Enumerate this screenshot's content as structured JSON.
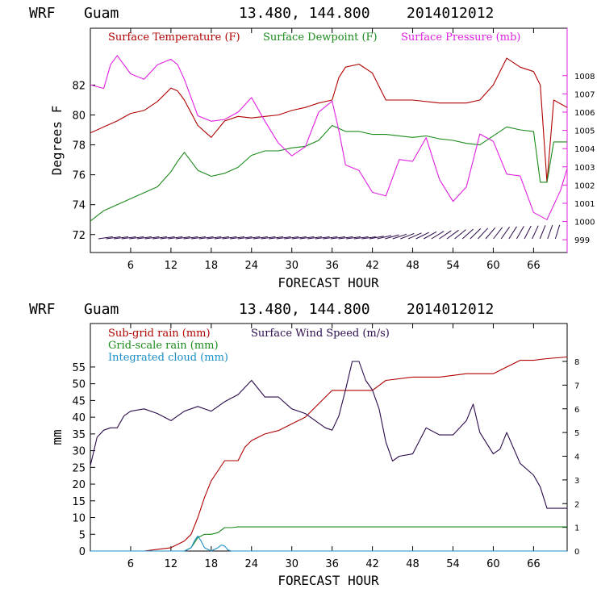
{
  "page": {
    "top_title": {
      "model": "WRF",
      "location": "Guam",
      "coords": "13.480, 144.800",
      "init": "2014012012"
    },
    "bottom_title": {
      "model": "WRF",
      "location": "Guam",
      "coords": "13.480, 144.800",
      "init": "2014012012"
    }
  },
  "colors": {
    "temperature": "#b00000",
    "dewpoint": "#1a8a1a",
    "pressure": "#e020e0",
    "subgrid_rain": "#b00000",
    "gridscale_rain": "#1a8a1a",
    "cloud": "#1a8fc8",
    "wind": "#2a0a4a",
    "axis": "#000000",
    "right_axis_top": "#e020e0"
  },
  "chart_data": [
    {
      "type": "line",
      "xlabel": "FORECAST HOUR",
      "ylabel": "Degrees F",
      "xlim": [
        0,
        71
      ],
      "ylim": [
        70.8,
        85.8
      ],
      "y2lim": [
        998.3,
        1010.6
      ],
      "xticks": [
        6,
        12,
        18,
        24,
        30,
        36,
        42,
        48,
        54,
        60,
        66
      ],
      "yticks": [
        72,
        74,
        76,
        78,
        80,
        82
      ],
      "y2ticks": [
        999,
        1000,
        1001,
        1002,
        1003,
        1004,
        1005,
        1006,
        1007,
        1008
      ],
      "legend": [
        "Surface Temperature (F)",
        "Surface Dewpoint (F)",
        "Surface Pressure (mb)"
      ],
      "legend_placement": "top",
      "series": [
        {
          "name": "Surface Temperature (F)",
          "axis": "left",
          "x": [
            0,
            2,
            4,
            6,
            8,
            10,
            12,
            13,
            14,
            16,
            18,
            20,
            22,
            24,
            26,
            28,
            30,
            32,
            34,
            36,
            37,
            38,
            40,
            42,
            44,
            48,
            52,
            56,
            58,
            60,
            62,
            64,
            66,
            67,
            68,
            69,
            71
          ],
          "values": [
            78.8,
            79.2,
            79.6,
            80.1,
            80.3,
            80.9,
            81.8,
            81.6,
            81.0,
            79.3,
            78.5,
            79.6,
            79.9,
            79.8,
            79.9,
            80.0,
            80.3,
            80.5,
            80.8,
            81.0,
            82.5,
            83.2,
            83.4,
            82.8,
            81.0,
            81.0,
            80.8,
            80.8,
            81.0,
            82.0,
            83.8,
            83.2,
            82.9,
            82.0,
            75.5,
            81.0,
            80.5
          ]
        },
        {
          "name": "Surface Dewpoint (F)",
          "axis": "left",
          "x": [
            0,
            2,
            4,
            6,
            8,
            10,
            12,
            13,
            14,
            16,
            18,
            20,
            22,
            24,
            26,
            28,
            30,
            32,
            34,
            36,
            38,
            40,
            42,
            44,
            46,
            48,
            50,
            52,
            54,
            56,
            58,
            60,
            62,
            64,
            66,
            67,
            68,
            69,
            71
          ],
          "values": [
            72.9,
            73.6,
            74.0,
            74.4,
            74.8,
            75.2,
            76.2,
            76.9,
            77.5,
            76.3,
            75.9,
            76.1,
            76.5,
            77.3,
            77.6,
            77.6,
            77.8,
            77.9,
            78.3,
            79.3,
            78.9,
            78.9,
            78.7,
            78.7,
            78.6,
            78.5,
            78.6,
            78.4,
            78.3,
            78.1,
            78.0,
            78.6,
            79.2,
            79.0,
            78.9,
            75.5,
            75.5,
            78.2,
            78.2
          ]
        },
        {
          "name": "Surface Pressure (mb)",
          "axis": "right",
          "x": [
            0,
            2,
            3,
            4,
            6,
            8,
            10,
            12,
            13,
            14,
            16,
            18,
            20,
            22,
            24,
            26,
            28,
            30,
            32,
            34,
            35,
            36,
            37,
            38,
            40,
            42,
            44,
            46,
            48,
            50,
            52,
            54,
            56,
            58,
            60,
            62,
            64,
            66,
            68,
            70,
            71
          ],
          "values": [
            1007.5,
            1007.3,
            1008.6,
            1009.1,
            1008.1,
            1007.8,
            1008.6,
            1008.9,
            1008.6,
            1007.8,
            1005.8,
            1005.5,
            1005.6,
            1006.0,
            1006.8,
            1005.5,
            1004.3,
            1003.6,
            1004.1,
            1006.0,
            1006.3,
            1006.6,
            1005.0,
            1003.1,
            1002.8,
            1001.6,
            1001.4,
            1003.4,
            1003.3,
            1004.6,
            1002.3,
            1001.1,
            1001.9,
            1004.8,
            1004.4,
            1002.6,
            1002.5,
            1000.5,
            1000.1,
            1001.7,
            1002.9
          ]
        }
      ]
    },
    {
      "type": "line",
      "xlabel": "FORECAST HOUR",
      "ylabel": "mm",
      "xlim": [
        0,
        71
      ],
      "ylim": [
        0,
        68
      ],
      "y2lim": [
        0,
        9.6
      ],
      "xticks": [
        6,
        12,
        18,
        24,
        30,
        36,
        42,
        48,
        54,
        60,
        66
      ],
      "yticks": [
        0,
        5,
        10,
        15,
        20,
        25,
        30,
        35,
        40,
        45,
        50,
        55
      ],
      "y2ticks": [
        0,
        1,
        2,
        3,
        4,
        5,
        6,
        7,
        8
      ],
      "legend": [
        "Sub-grid rain (mm)",
        "Surface Wind Speed (m/s)",
        "Grid-scale rain (mm)",
        "Integrated cloud (mm)"
      ],
      "legend_placement": "top-left",
      "series": [
        {
          "name": "Sub-grid rain (mm)",
          "axis": "left",
          "x": [
            0,
            8,
            10,
            12,
            14,
            15,
            16,
            17,
            18,
            19,
            20,
            21,
            22,
            23,
            24,
            26,
            28,
            30,
            32,
            34,
            36,
            38,
            40,
            42,
            44,
            48,
            52,
            56,
            60,
            62,
            64,
            66,
            68,
            71
          ],
          "values": [
            0,
            0,
            0.5,
            1,
            3,
            5,
            10,
            16,
            21,
            24,
            27,
            27,
            27,
            31,
            33,
            35,
            36,
            38,
            40,
            44,
            48,
            48,
            48,
            48,
            51,
            52,
            52,
            53,
            53,
            55,
            57,
            57,
            57.5,
            58
          ]
        },
        {
          "name": "Grid-scale rain (mm)",
          "axis": "left",
          "x": [
            0,
            14,
            15,
            16,
            17,
            18,
            19,
            20,
            21,
            22,
            30,
            40,
            50,
            60,
            71
          ],
          "values": [
            0,
            0,
            1,
            4,
            5,
            5,
            5.5,
            7,
            7,
            7.2,
            7.2,
            7.2,
            7.2,
            7.2,
            7.2
          ]
        },
        {
          "name": "Integrated cloud (mm)",
          "axis": "left",
          "x": [
            0,
            14,
            15,
            15.5,
            16,
            16.5,
            17,
            18,
            19,
            19.5,
            20,
            20.5,
            21,
            22,
            30,
            40,
            50,
            60,
            71
          ],
          "values": [
            0,
            0,
            1,
            3,
            4.5,
            3,
            1,
            0,
            1,
            1.8,
            1.5,
            0.3,
            0,
            0,
            0,
            0,
            0,
            0,
            0
          ]
        },
        {
          "name": "Surface Wind Speed (m/s)",
          "axis": "right",
          "x": [
            0,
            1,
            2,
            3,
            4,
            5,
            6,
            8,
            10,
            12,
            14,
            16,
            18,
            20,
            22,
            24,
            26,
            28,
            30,
            32,
            34,
            35,
            36,
            37,
            38,
            39,
            40,
            41,
            42,
            43,
            44,
            45,
            46,
            48,
            50,
            52,
            54,
            56,
            57,
            58,
            60,
            61,
            62,
            64,
            66,
            67,
            68,
            70,
            71
          ],
          "values": [
            3.6,
            4.8,
            5.1,
            5.2,
            5.2,
            5.7,
            5.9,
            6.0,
            5.8,
            5.5,
            5.9,
            6.1,
            5.9,
            6.3,
            6.6,
            7.2,
            6.5,
            6.5,
            6.0,
            5.8,
            5.4,
            5.2,
            5.1,
            5.7,
            6.8,
            8.0,
            8.0,
            7.2,
            6.8,
            6.0,
            4.6,
            3.8,
            4.0,
            4.1,
            5.2,
            4.9,
            4.9,
            5.5,
            6.2,
            5.0,
            4.1,
            4.3,
            5.0,
            3.7,
            3.2,
            2.7,
            1.8,
            1.8,
            1.8
          ]
        }
      ]
    }
  ]
}
